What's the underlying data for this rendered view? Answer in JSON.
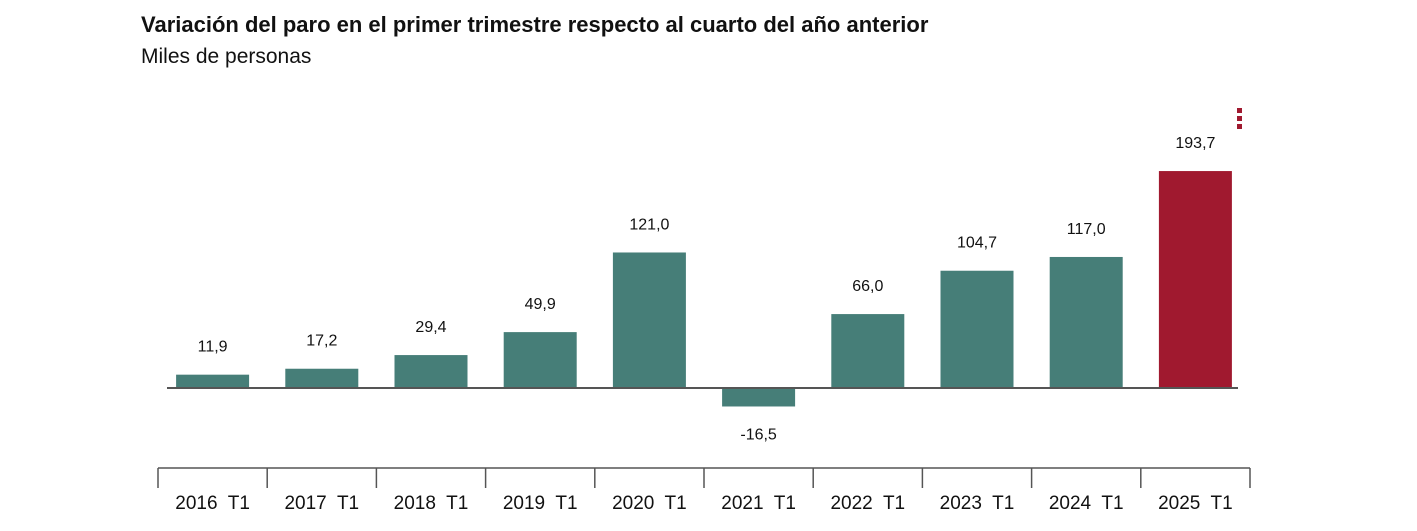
{
  "header": {
    "title": "Variación del paro en el primer trimestre respecto al cuarto del año anterior",
    "subtitle": "Miles de personas"
  },
  "menu": {
    "icon": "vertical-dots-icon"
  },
  "colors": {
    "bar": "#467e78",
    "highlight": "#a0192f",
    "axis": "#555555"
  },
  "chart_data": {
    "type": "bar",
    "title": "Variación del paro en el primer trimestre respecto al cuarto del año anterior",
    "subtitle": "Miles de personas",
    "categories": [
      "2016  T1",
      "2017  T1",
      "2018  T1",
      "2019  T1",
      "2020  T1",
      "2021  T1",
      "2022  T1",
      "2023  T1",
      "2024  T1",
      "2025  T1"
    ],
    "values": [
      11.9,
      17.2,
      29.4,
      49.9,
      121.0,
      -16.5,
      66.0,
      104.7,
      117.0,
      193.7
    ],
    "labels": [
      "11,9",
      "17,2",
      "29,4",
      "49,9",
      "121,0",
      "-16,5",
      "66,0",
      "104,7",
      "117,0",
      "193,7"
    ],
    "highlight_index": 9,
    "grid": false,
    "legend": "none"
  }
}
